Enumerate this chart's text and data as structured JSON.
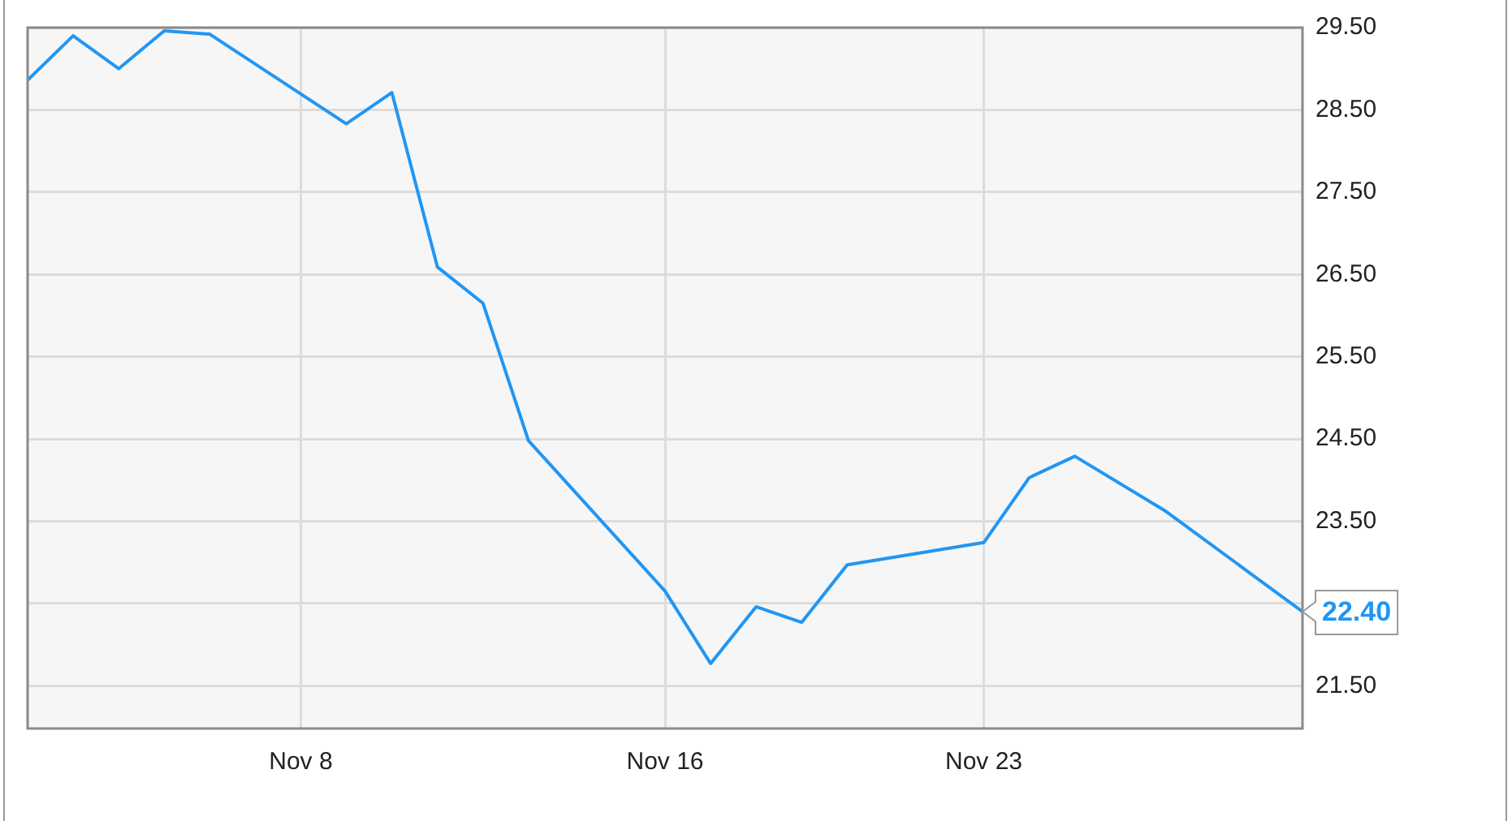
{
  "chart_data": {
    "type": "line",
    "x": [
      "--11-02",
      "--11-03",
      "--11-04",
      "--11-05",
      "--11-06",
      "--11-09",
      "--11-10",
      "--11-11",
      "--11-12",
      "--11-13",
      "--11-16",
      "--11-17",
      "--11-18",
      "--11-19",
      "--11-20",
      "--11-23",
      "--11-24",
      "--11-25",
      "--11-27",
      "--11-30"
    ],
    "series": [
      {
        "color": "#2196f3",
        "values": [
          28.86,
          29.4,
          29.0,
          29.46,
          29.42,
          28.33,
          28.71,
          26.59,
          26.15,
          24.48,
          22.65,
          21.77,
          22.46,
          22.27,
          22.97,
          23.24,
          24.03,
          24.29,
          23.62,
          22.4
        ],
        "value_labels": [
          null,
          null,
          null,
          null,
          null,
          null,
          null,
          null,
          null,
          null,
          null,
          null,
          null,
          null,
          null,
          null,
          null,
          null,
          null,
          "22.40"
        ]
      }
    ],
    "xlim": [
      "--11-02",
      "--11-30"
    ],
    "xticks": [
      {
        "value": "--11-08",
        "label": "Nov 8"
      },
      {
        "value": "--11-16",
        "label": "Nov 16"
      },
      {
        "value": "--11-23",
        "label": "Nov 23"
      }
    ],
    "ylim": [
      20.98,
      29.5
    ],
    "yticks": [
      {
        "value": 21.5,
        "label": "21.50"
      },
      {
        "value": 22.5,
        "label": null
      },
      {
        "value": 23.5,
        "label": "23.50"
      },
      {
        "value": 24.5,
        "label": "24.50"
      },
      {
        "value": 25.5,
        "label": "25.50"
      },
      {
        "value": 26.5,
        "label": "26.50"
      },
      {
        "value": 27.5,
        "label": "27.50"
      },
      {
        "value": 28.5,
        "label": "28.50"
      },
      {
        "value": 29.5,
        "label": "29.50"
      }
    ],
    "grid": true,
    "marker": "none",
    "line_style": "solid",
    "legend": false
  }
}
